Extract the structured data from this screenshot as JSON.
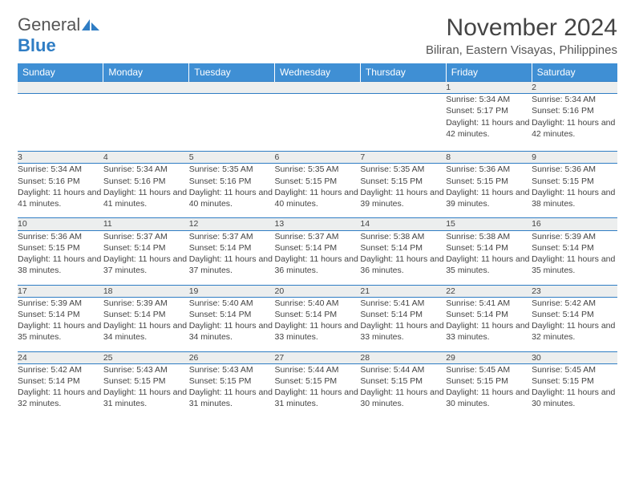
{
  "brand": {
    "word1": "General",
    "word2": "Blue"
  },
  "title": "November 2024",
  "location": "Biliran, Eastern Visayas, Philippines",
  "colors": {
    "header_bg": "#3f8fd4",
    "border": "#2f7dc4",
    "stripe": "#eceeee"
  },
  "weekdays": [
    "Sunday",
    "Monday",
    "Tuesday",
    "Wednesday",
    "Thursday",
    "Friday",
    "Saturday"
  ],
  "weeks": [
    {
      "nums": [
        "",
        "",
        "",
        "",
        "",
        "1",
        "2"
      ],
      "cells": [
        "",
        "",
        "",
        "",
        "",
        "Sunrise: 5:34 AM\nSunset: 5:17 PM\nDaylight: 11 hours and 42 minutes.",
        "Sunrise: 5:34 AM\nSunset: 5:16 PM\nDaylight: 11 hours and 42 minutes."
      ]
    },
    {
      "nums": [
        "3",
        "4",
        "5",
        "6",
        "7",
        "8",
        "9"
      ],
      "cells": [
        "Sunrise: 5:34 AM\nSunset: 5:16 PM\nDaylight: 11 hours and 41 minutes.",
        "Sunrise: 5:34 AM\nSunset: 5:16 PM\nDaylight: 11 hours and 41 minutes.",
        "Sunrise: 5:35 AM\nSunset: 5:16 PM\nDaylight: 11 hours and 40 minutes.",
        "Sunrise: 5:35 AM\nSunset: 5:15 PM\nDaylight: 11 hours and 40 minutes.",
        "Sunrise: 5:35 AM\nSunset: 5:15 PM\nDaylight: 11 hours and 39 minutes.",
        "Sunrise: 5:36 AM\nSunset: 5:15 PM\nDaylight: 11 hours and 39 minutes.",
        "Sunrise: 5:36 AM\nSunset: 5:15 PM\nDaylight: 11 hours and 38 minutes."
      ]
    },
    {
      "nums": [
        "10",
        "11",
        "12",
        "13",
        "14",
        "15",
        "16"
      ],
      "cells": [
        "Sunrise: 5:36 AM\nSunset: 5:15 PM\nDaylight: 11 hours and 38 minutes.",
        "Sunrise: 5:37 AM\nSunset: 5:14 PM\nDaylight: 11 hours and 37 minutes.",
        "Sunrise: 5:37 AM\nSunset: 5:14 PM\nDaylight: 11 hours and 37 minutes.",
        "Sunrise: 5:37 AM\nSunset: 5:14 PM\nDaylight: 11 hours and 36 minutes.",
        "Sunrise: 5:38 AM\nSunset: 5:14 PM\nDaylight: 11 hours and 36 minutes.",
        "Sunrise: 5:38 AM\nSunset: 5:14 PM\nDaylight: 11 hours and 35 minutes.",
        "Sunrise: 5:39 AM\nSunset: 5:14 PM\nDaylight: 11 hours and 35 minutes."
      ]
    },
    {
      "nums": [
        "17",
        "18",
        "19",
        "20",
        "21",
        "22",
        "23"
      ],
      "cells": [
        "Sunrise: 5:39 AM\nSunset: 5:14 PM\nDaylight: 11 hours and 35 minutes.",
        "Sunrise: 5:39 AM\nSunset: 5:14 PM\nDaylight: 11 hours and 34 minutes.",
        "Sunrise: 5:40 AM\nSunset: 5:14 PM\nDaylight: 11 hours and 34 minutes.",
        "Sunrise: 5:40 AM\nSunset: 5:14 PM\nDaylight: 11 hours and 33 minutes.",
        "Sunrise: 5:41 AM\nSunset: 5:14 PM\nDaylight: 11 hours and 33 minutes.",
        "Sunrise: 5:41 AM\nSunset: 5:14 PM\nDaylight: 11 hours and 33 minutes.",
        "Sunrise: 5:42 AM\nSunset: 5:14 PM\nDaylight: 11 hours and 32 minutes."
      ]
    },
    {
      "nums": [
        "24",
        "25",
        "26",
        "27",
        "28",
        "29",
        "30"
      ],
      "cells": [
        "Sunrise: 5:42 AM\nSunset: 5:14 PM\nDaylight: 11 hours and 32 minutes.",
        "Sunrise: 5:43 AM\nSunset: 5:15 PM\nDaylight: 11 hours and 31 minutes.",
        "Sunrise: 5:43 AM\nSunset: 5:15 PM\nDaylight: 11 hours and 31 minutes.",
        "Sunrise: 5:44 AM\nSunset: 5:15 PM\nDaylight: 11 hours and 31 minutes.",
        "Sunrise: 5:44 AM\nSunset: 5:15 PM\nDaylight: 11 hours and 30 minutes.",
        "Sunrise: 5:45 AM\nSunset: 5:15 PM\nDaylight: 11 hours and 30 minutes.",
        "Sunrise: 5:45 AM\nSunset: 5:15 PM\nDaylight: 11 hours and 30 minutes."
      ]
    }
  ]
}
